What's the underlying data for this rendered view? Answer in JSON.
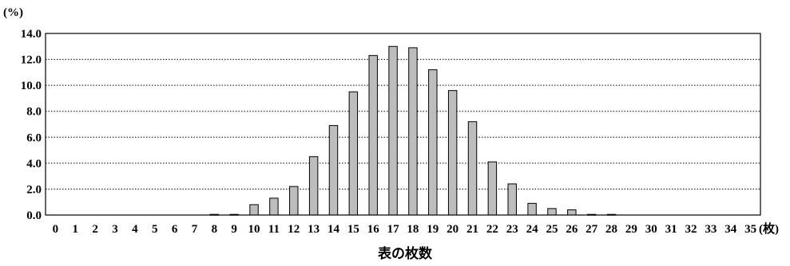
{
  "chart_data": {
    "type": "bar",
    "title": "",
    "xlabel": "表の枚数",
    "ylabel": "(%)",
    "x_unit": "(枚)",
    "categories": [
      "0",
      "1",
      "2",
      "3",
      "4",
      "5",
      "6",
      "7",
      "8",
      "9",
      "10",
      "11",
      "12",
      "13",
      "14",
      "15",
      "16",
      "17",
      "18",
      "19",
      "20",
      "21",
      "22",
      "23",
      "24",
      "25",
      "26",
      "27",
      "28",
      "29",
      "30",
      "31",
      "32",
      "33",
      "34",
      "35"
    ],
    "values": [
      0,
      0,
      0,
      0,
      0,
      0,
      0,
      0,
      0.05,
      0.05,
      0.8,
      1.3,
      2.2,
      4.5,
      6.9,
      9.5,
      12.3,
      13.0,
      12.9,
      11.2,
      9.6,
      7.2,
      4.1,
      2.4,
      0.9,
      0.5,
      0.4,
      0.05,
      0.05,
      0,
      0,
      0,
      0,
      0,
      0,
      0
    ],
    "ylim": [
      0,
      14
    ],
    "yticks": [
      "0.0",
      "2.0",
      "4.0",
      "6.0",
      "8.0",
      "10.0",
      "12.0",
      "14.0"
    ],
    "grid": true,
    "legend": "none",
    "colors": {
      "bar_fill": "#bdbdbd",
      "bar_stroke": "#000000",
      "grid": "#000000",
      "axis": "#000000"
    }
  }
}
